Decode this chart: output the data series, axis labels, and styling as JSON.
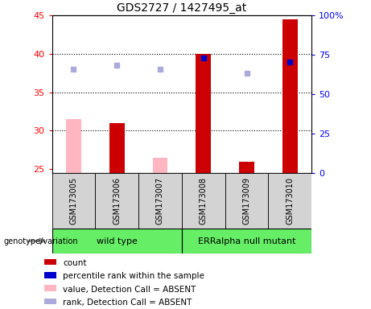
{
  "title": "GDS2727 / 1427495_at",
  "samples": [
    "GSM173005",
    "GSM173006",
    "GSM173007",
    "GSM173008",
    "GSM173009",
    "GSM173010"
  ],
  "group_labels": [
    "wild type",
    "ERRalpha null mutant"
  ],
  "ylim_left": [
    24.5,
    45
  ],
  "ylim_right": [
    0,
    100
  ],
  "yticks_left": [
    25,
    30,
    35,
    40,
    45
  ],
  "yticks_right": [
    0,
    25,
    50,
    75,
    100
  ],
  "yticklabels_right": [
    "0",
    "25",
    "50",
    "75",
    "100%"
  ],
  "bar_values": [
    null,
    31.0,
    null,
    40.0,
    26.0,
    44.5
  ],
  "bar_absent_values": [
    31.5,
    null,
    26.5,
    null,
    null,
    null
  ],
  "bar_color_present": "#CC0000",
  "bar_color_absent": "#FFB6C1",
  "dot_rank_present": [
    null,
    null,
    null,
    39.5,
    null,
    39.0
  ],
  "dot_rank_absent": [
    38.0,
    38.5,
    38.0,
    null,
    37.5,
    null
  ],
  "dot_color_present": "#0000CC",
  "dot_color_absent": "#AAAADD",
  "bar_width": 0.35,
  "label_area_color": "#D3D3D3",
  "green_color": "#66EE66",
  "legend_items": [
    [
      "#CC0000",
      "count"
    ],
    [
      "#0000CC",
      "percentile rank within the sample"
    ],
    [
      "#FFB6C1",
      "value, Detection Call = ABSENT"
    ],
    [
      "#AAAADD",
      "rank, Detection Call = ABSENT"
    ]
  ]
}
